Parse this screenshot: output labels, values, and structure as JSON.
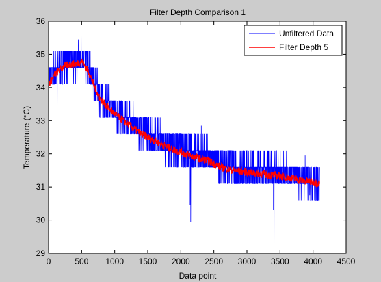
{
  "figure": {
    "background": "#cccccc"
  },
  "chart_data": {
    "type": "line",
    "title": "Filter Depth Comparison 1",
    "xlabel": "Data point",
    "ylabel": "Temperature (°C)",
    "xlim": [
      0,
      4500
    ],
    "ylim": [
      29,
      36
    ],
    "xticks": [
      0,
      500,
      1000,
      1500,
      2000,
      2500,
      3000,
      3500,
      4000,
      4500
    ],
    "yticks": [
      29,
      30,
      31,
      32,
      33,
      34,
      35,
      36
    ],
    "grid": false,
    "legend_position": "top-right",
    "series": [
      {
        "name": "Unfiltered Data",
        "color": "#0000ff",
        "trend_x": [
          0,
          100,
          200,
          300,
          400,
          500,
          600,
          700,
          800,
          900,
          1000,
          1200,
          1400,
          1600,
          1800,
          2000,
          2200,
          2400,
          2600,
          2800,
          3000,
          3200,
          3400,
          3600,
          3800,
          4000,
          4100
        ],
        "trend_y": [
          34.1,
          34.4,
          34.6,
          34.7,
          34.7,
          34.8,
          34.5,
          34.0,
          33.6,
          33.4,
          33.2,
          32.9,
          32.6,
          32.4,
          32.2,
          32.05,
          31.9,
          31.8,
          31.6,
          31.5,
          31.45,
          31.4,
          31.35,
          31.3,
          31.2,
          31.15,
          31.1
        ],
        "quantization": 0.5,
        "noise_amplitude": 0.5,
        "spikes": [
          {
            "x": 450,
            "y": 35.45
          },
          {
            "x": 130,
            "y": 33.45
          },
          {
            "x": 2140,
            "y": 30.45
          },
          {
            "x": 2150,
            "y": 29.95
          },
          {
            "x": 2310,
            "y": 32.85
          },
          {
            "x": 2880,
            "y": 32.75
          },
          {
            "x": 3400,
            "y": 30.3
          },
          {
            "x": 3410,
            "y": 29.3
          },
          {
            "x": 3880,
            "y": 31.95
          },
          {
            "x": 3950,
            "y": 30.75
          }
        ]
      },
      {
        "name": "Filter Depth 5",
        "color": "#ff0000",
        "trend_x": [
          0,
          100,
          200,
          300,
          400,
          500,
          600,
          700,
          800,
          900,
          1000,
          1200,
          1400,
          1600,
          1800,
          2000,
          2200,
          2400,
          2600,
          2800,
          3000,
          3200,
          3400,
          3600,
          3800,
          4000,
          4100
        ],
        "trend_y": [
          34.1,
          34.4,
          34.6,
          34.7,
          34.7,
          34.8,
          34.5,
          34.0,
          33.6,
          33.4,
          33.2,
          32.9,
          32.6,
          32.4,
          32.2,
          32.05,
          31.9,
          31.8,
          31.6,
          31.5,
          31.45,
          31.4,
          31.35,
          31.3,
          31.2,
          31.15,
          31.1
        ],
        "noise_amplitude": 0.12
      }
    ]
  }
}
